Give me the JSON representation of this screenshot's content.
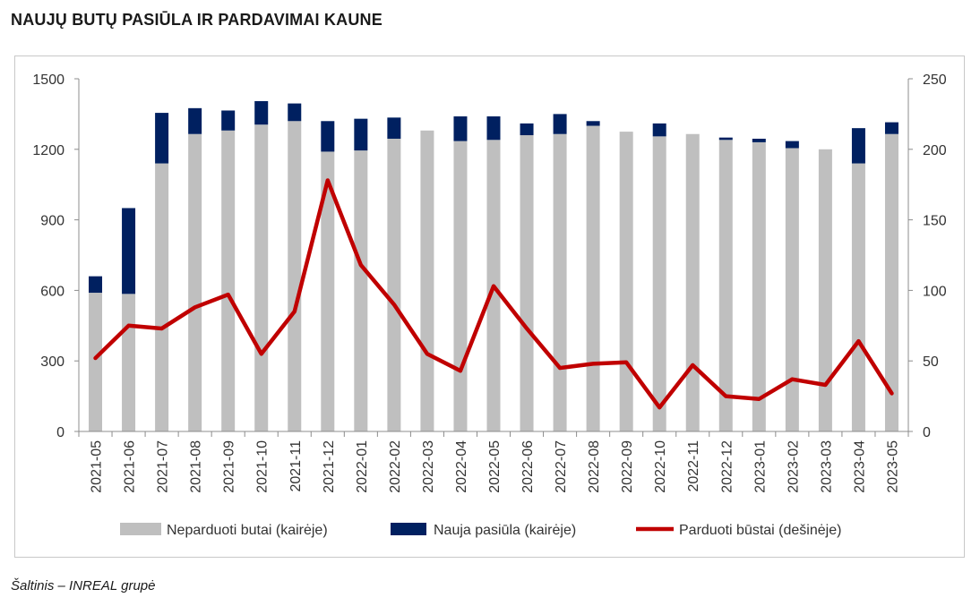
{
  "title": "NAUJŲ BUTŲ PASIŪLA IR PARDAVIMAI KAUNE",
  "source": "Šaltinis – INREAL grupė",
  "chart_data": {
    "type": "bar",
    "stacked": true,
    "categories": [
      "2021-05",
      "2021-06",
      "2021-07",
      "2021-08",
      "2021-09",
      "2021-10",
      "2021-11",
      "2021-12",
      "2022-01",
      "2022-02",
      "2022-03",
      "2022-04",
      "2022-05",
      "2022-06",
      "2022-07",
      "2022-08",
      "2022-09",
      "2022-10",
      "2022-11",
      "2022-12",
      "2023-01",
      "2023-02",
      "2023-03",
      "2023-04",
      "2023-05"
    ],
    "series": [
      {
        "name": "Neparduoti butai (kairėje)",
        "type": "bar",
        "axis": "left",
        "color": "#bfbfbf",
        "values": [
          590,
          585,
          1140,
          1265,
          1280,
          1305,
          1320,
          1190,
          1195,
          1245,
          1280,
          1235,
          1240,
          1260,
          1265,
          1300,
          1275,
          1255,
          1265,
          1240,
          1230,
          1205,
          1200,
          1140,
          1265
        ]
      },
      {
        "name": "Nauja pasiūla (kairėje)",
        "type": "bar",
        "axis": "left",
        "color": "#002060",
        "values": [
          70,
          365,
          215,
          110,
          85,
          100,
          75,
          130,
          135,
          90,
          0,
          105,
          100,
          50,
          85,
          20,
          0,
          55,
          0,
          10,
          15,
          30,
          0,
          150,
          50
        ]
      },
      {
        "name": "Parduoti būstai (dešinėje)",
        "type": "line",
        "axis": "right",
        "color": "#c00000",
        "values": [
          52,
          75,
          73,
          88,
          97,
          55,
          85,
          178,
          118,
          90,
          55,
          43,
          103,
          73,
          45,
          48,
          49,
          17,
          47,
          25,
          23,
          37,
          33,
          64,
          27
        ]
      }
    ],
    "left_axis": {
      "min": 0,
      "max": 1500,
      "ticks": [
        0,
        300,
        600,
        900,
        1200,
        1500
      ]
    },
    "right_axis": {
      "min": 0,
      "max": 250,
      "ticks": [
        0,
        50,
        100,
        150,
        200,
        250
      ]
    },
    "grid": false,
    "legend_position": "bottom"
  }
}
